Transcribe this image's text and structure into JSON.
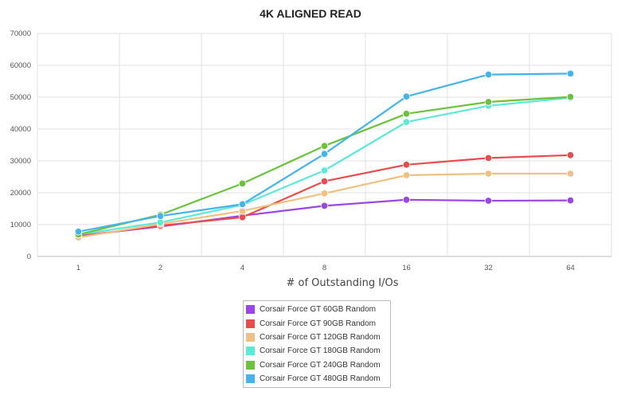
{
  "chart_data": {
    "type": "line",
    "title": "4K ALIGNED READ",
    "xlabel": "# of Outstanding I/Os",
    "ylabel": "",
    "categories": [
      "1",
      "2",
      "4",
      "8",
      "16",
      "32",
      "64"
    ],
    "y_ticks": [
      "0",
      "10000",
      "20000",
      "30000",
      "40000",
      "50000",
      "60000",
      "70000"
    ],
    "ylim": [
      0,
      70000
    ],
    "grid": true,
    "legend_position": "bottom-center",
    "series": [
      {
        "name": "Corsair Force GT 60GB Random",
        "color": "#9b45e6",
        "values": [
          6500,
          9400,
          12800,
          15900,
          17800,
          17500,
          17600
        ]
      },
      {
        "name": "Corsair Force GT 90GB Random",
        "color": "#e84c4c",
        "values": [
          6300,
          9700,
          12300,
          23600,
          28800,
          30900,
          31800
        ]
      },
      {
        "name": "Corsair Force GT 120GB Random",
        "color": "#f0c07e",
        "values": [
          6000,
          10200,
          14300,
          19800,
          25500,
          26000,
          26000
        ]
      },
      {
        "name": "Corsair Force GT 180GB Random",
        "color": "#5ee8d8",
        "values": [
          6900,
          10700,
          16200,
          27000,
          42200,
          47300,
          49800
        ]
      },
      {
        "name": "Corsair Force GT 240GB Random",
        "color": "#6cc23c",
        "values": [
          6900,
          13100,
          22900,
          34700,
          44800,
          48500,
          50100
        ]
      },
      {
        "name": "Corsair Force GT 480GB Random",
        "color": "#44b4ea",
        "values": [
          7800,
          12700,
          16400,
          32200,
          50200,
          57100,
          57400
        ]
      }
    ]
  }
}
